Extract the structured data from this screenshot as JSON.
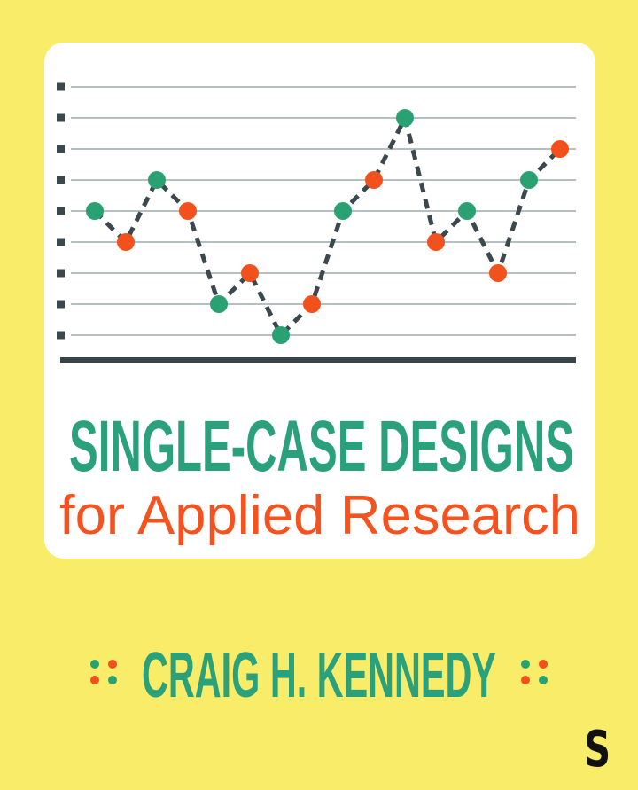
{
  "page": {
    "background_color": "#f8ec68"
  },
  "cover": {
    "title": "SINGLE-CASE DESIGNS",
    "subtitle": "for Applied Research",
    "author": "CRAIG H. KENNEDY",
    "publisher_logo_letter": "S",
    "colors": {
      "teal": "#2ba17b",
      "orange": "#f4531f",
      "dot_teal": "#29a173",
      "dot_orange": "#f1511d",
      "slate": "#3b484e",
      "axis": "#37444a",
      "gridline": "#b5bfc2",
      "logo_black": "#111111",
      "card_white": "#ffffff"
    },
    "ornament_left": [
      "teal",
      "orange",
      "orange",
      "teal"
    ],
    "ornament_right": [
      "teal",
      "orange",
      "orange",
      "teal"
    ]
  },
  "chart_data": {
    "type": "line",
    "title": "",
    "xlabel": "",
    "ylabel": "",
    "x": [
      1,
      2,
      3,
      4,
      5,
      6,
      7,
      8,
      9,
      10,
      11,
      12,
      13,
      14,
      15,
      16
    ],
    "values": [
      5,
      4,
      6,
      5,
      2,
      3,
      1,
      2,
      5,
      6,
      8,
      4,
      5,
      3,
      6,
      7
    ],
    "point_colors": [
      "teal",
      "orange",
      "teal",
      "orange",
      "teal",
      "orange",
      "teal",
      "orange",
      "teal",
      "orange",
      "teal",
      "orange",
      "teal",
      "orange",
      "teal",
      "orange"
    ],
    "line_style": "dashed",
    "ylim": [
      1,
      9
    ],
    "gridline_count": 9,
    "tick_marker": "square",
    "axis_labels_visible": false,
    "legend": "none",
    "grid": "on"
  }
}
